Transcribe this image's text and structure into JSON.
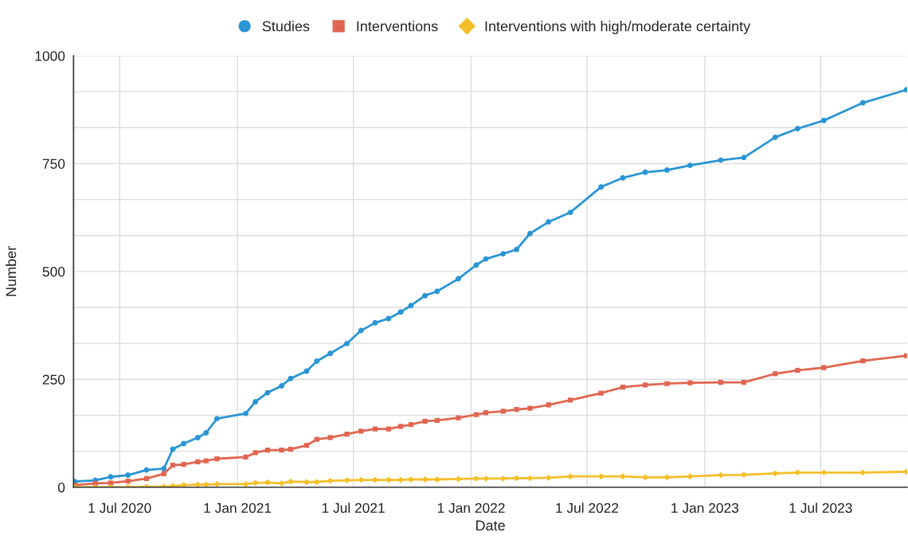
{
  "chart_data": {
    "type": "line",
    "xlabel": "Date",
    "ylabel": "Number",
    "x": [
      "2020-04-22",
      "2020-05-24",
      "2020-06-17",
      "2020-07-14",
      "2020-08-12",
      "2020-09-08",
      "2020-09-22",
      "2020-10-09",
      "2020-10-31",
      "2020-11-13",
      "2020-11-30",
      "2021-01-14",
      "2021-01-29",
      "2021-02-17",
      "2021-03-11",
      "2021-03-25",
      "2021-04-19",
      "2021-05-05",
      "2021-05-26",
      "2021-06-21",
      "2021-07-13",
      "2021-08-04",
      "2021-08-25",
      "2021-09-13",
      "2021-09-29",
      "2021-10-21",
      "2021-11-09",
      "2021-12-12",
      "2022-01-09",
      "2022-01-24",
      "2022-02-20",
      "2022-03-13",
      "2022-04-03",
      "2022-05-02",
      "2022-06-05",
      "2022-07-23",
      "2022-08-26",
      "2022-09-30",
      "2022-11-03",
      "2022-12-09",
      "2023-01-26",
      "2023-03-03",
      "2023-04-21",
      "2023-05-26",
      "2023-07-06",
      "2023-09-05",
      "2023-11-12"
    ],
    "series": [
      {
        "name": "Studies",
        "color": "#2a95d5",
        "marker": "circle",
        "values": [
          13,
          16,
          24,
          28,
          40,
          43,
          88,
          101,
          115,
          126,
          159,
          171,
          198,
          219,
          235,
          252,
          269,
          292,
          310,
          333,
          363,
          381,
          391,
          406,
          421,
          444,
          454,
          483,
          515,
          529,
          541,
          551,
          588,
          615,
          637,
          696,
          717,
          730,
          735,
          746,
          758,
          764,
          811,
          831,
          850,
          891,
          921
        ]
      },
      {
        "name": "Interventions",
        "color": "#e06651",
        "marker": "square",
        "values": [
          5,
          9,
          10,
          14,
          20,
          31,
          51,
          53,
          59,
          61,
          66,
          70,
          80,
          86,
          86,
          88,
          97,
          111,
          115,
          123,
          130,
          135,
          135,
          141,
          145,
          153,
          155,
          161,
          168,
          173,
          176,
          180,
          183,
          191,
          202,
          218,
          232,
          237,
          240,
          242,
          243,
          243,
          263,
          271,
          277,
          293,
          305
        ]
      },
      {
        "name": "Interventions with high/moderate certainty",
        "color": "#f5bf2a",
        "marker": "diamond",
        "values": [
          0,
          0,
          0,
          0,
          1,
          1,
          3,
          5,
          6,
          6,
          7,
          7,
          10,
          11,
          9,
          13,
          12,
          12,
          15,
          16,
          17,
          17,
          17,
          17,
          18,
          18,
          18,
          19,
          20,
          20,
          20,
          21,
          21,
          22,
          25,
          25,
          25,
          23,
          23,
          25,
          28,
          29,
          32,
          34,
          34,
          34,
          36
        ]
      }
    ],
    "xlim": [
      "2020-04-20",
      "2023-11-13"
    ],
    "xticks": [
      {
        "value": "2020-07-01",
        "label": "1 Jul 2020"
      },
      {
        "value": "2021-01-01",
        "label": "1 Jan 2021"
      },
      {
        "value": "2021-07-01",
        "label": "1 Jul 2021"
      },
      {
        "value": "2022-01-01",
        "label": "1 Jan 2022"
      },
      {
        "value": "2022-07-01",
        "label": "1 Jul 2022"
      },
      {
        "value": "2023-01-01",
        "label": "1 Jan 2023"
      },
      {
        "value": "2023-07-01",
        "label": "1 Jul 2023"
      }
    ],
    "ylim": [
      0,
      1000
    ],
    "yticks": [
      0,
      {
        "value": 83.33,
        "label": null
      },
      {
        "value": 166.67,
        "label": null
      },
      250,
      {
        "value": 333.33,
        "label": null
      },
      {
        "value": 416.67,
        "label": null
      },
      500,
      {
        "value": 583.33,
        "label": null
      },
      {
        "value": 666.67,
        "label": null
      },
      750,
      {
        "value": 833.33,
        "label": null
      },
      {
        "value": 916.67,
        "label": null
      },
      1000
    ],
    "grid": true,
    "legend": "top",
    "line_style": "solid"
  }
}
